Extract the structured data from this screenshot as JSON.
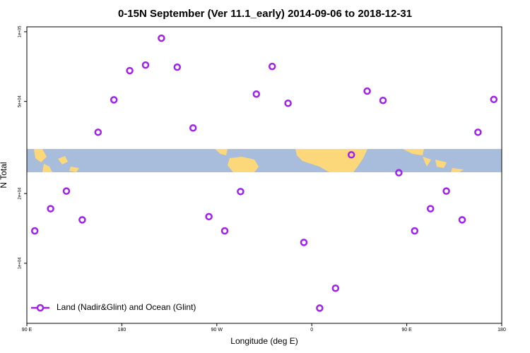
{
  "chart_data": {
    "type": "scatter",
    "title": "0-15N September (Ver 11.1_early)   2014-09-06 to 2018-12-31",
    "x_label": "Longitude (deg E)",
    "y_label": "N Total",
    "series": [
      {
        "name": "Land (Nadir&Glint) and Ocean (Glint)",
        "color": "#a020f0",
        "x": [
          97.5,
          112.5,
          127.5,
          142.5,
          157.5,
          172.5,
          187.5,
          202.5,
          217.5,
          232.5,
          247.5,
          262.5,
          277.5,
          292.5,
          307.5,
          322.5,
          337.5,
          352.5,
          367.5,
          382.5,
          397.5,
          412.5,
          427.5,
          442.5,
          457.5,
          472.5,
          487.5,
          502.5,
          517.5,
          532.5
        ],
        "values": [
          13800,
          17200,
          20500,
          15400,
          36800,
          50800,
          67900,
          71800,
          93800,
          70300,
          38400,
          15900,
          13800,
          20400,
          53800,
          70800,
          49100,
          12300,
          6400,
          7800,
          29400,
          55400,
          50500,
          24600,
          13800,
          17200,
          20500,
          15400,
          36800,
          51000
        ]
      }
    ],
    "xlim": [
      90,
      540
    ],
    "xticks": [
      {
        "value": 90,
        "label": "90 E"
      },
      180,
      {
        "value": 270,
        "label": "90 W"
      },
      {
        "value": 360,
        "label": "0"
      },
      {
        "value": 450,
        "label": "90 E"
      },
      {
        "value": 540,
        "label": "180"
      }
    ],
    "ylim": [
      5500,
      105000
    ],
    "yticks": [
      {
        "value": 10000,
        "label": "1e+04"
      },
      {
        "value": 20000,
        "label": "2e+04"
      },
      {
        "value": 50000,
        "label": "5e+04"
      },
      {
        "value": 100000,
        "label": "1e+05"
      }
    ],
    "ylog": true,
    "legend": "lower left"
  }
}
